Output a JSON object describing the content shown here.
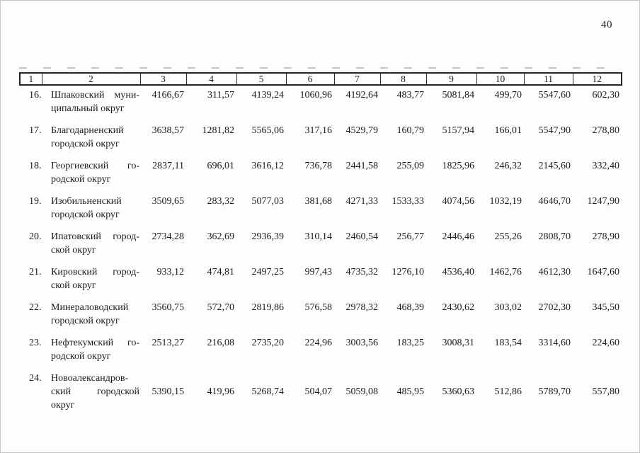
{
  "page": {
    "number": "40",
    "ink_color": "#1b1b1b",
    "paper_color": "#fefefe"
  },
  "table": {
    "header": [
      "1",
      "2",
      "3",
      "4",
      "5",
      "6",
      "7",
      "8",
      "9",
      "10",
      "11",
      "12"
    ],
    "rows": [
      {
        "num": "16.",
        "name_lines": [
          "Шпаковский муни-",
          "ципальный округ"
        ],
        "values": [
          "4166,67",
          "311,57",
          "4139,24",
          "1060,96",
          "4192,64",
          "483,77",
          "5081,84",
          "499,70",
          "5547,60",
          "602,30"
        ],
        "value_line_offset": 0
      },
      {
        "num": "17.",
        "name_lines": [
          "Благодарненский",
          "городской округ"
        ],
        "values": [
          "3638,57",
          "1281,82",
          "5565,06",
          "317,16",
          "4529,79",
          "160,79",
          "5157,94",
          "166,01",
          "5547,90",
          "278,80"
        ],
        "value_line_offset": 0
      },
      {
        "num": "18.",
        "name_lines": [
          "Георгиевский го-",
          "родской округ"
        ],
        "values": [
          "2837,11",
          "696,01",
          "3616,12",
          "736,78",
          "2441,58",
          "255,09",
          "1825,96",
          "246,32",
          "2145,60",
          "332,40"
        ],
        "value_line_offset": 0
      },
      {
        "num": "19.",
        "name_lines": [
          "Изобильненский",
          "городской округ"
        ],
        "values": [
          "3509,65",
          "283,32",
          "5077,03",
          "381,68",
          "4271,33",
          "1533,33",
          "4074,56",
          "1032,19",
          "4646,70",
          "1247,90"
        ],
        "value_line_offset": 0
      },
      {
        "num": "20.",
        "name_lines": [
          "Ипатовский город-",
          "ской округ"
        ],
        "values": [
          "2734,28",
          "362,69",
          "2936,39",
          "310,14",
          "2460,54",
          "256,77",
          "2446,46",
          "255,26",
          "2808,70",
          "278,90"
        ],
        "value_line_offset": 0
      },
      {
        "num": "21.",
        "name_lines": [
          "Кировский город-",
          "ской округ"
        ],
        "values": [
          "933,12",
          "474,81",
          "2497,25",
          "997,43",
          "4735,32",
          "1276,10",
          "4536,40",
          "1462,76",
          "4612,30",
          "1647,60"
        ],
        "value_line_offset": 0
      },
      {
        "num": "22.",
        "name_lines": [
          "Минераловодский",
          "городской округ"
        ],
        "values": [
          "3560,75",
          "572,70",
          "2819,86",
          "576,58",
          "2978,32",
          "468,39",
          "2430,62",
          "303,02",
          "2702,30",
          "345,50"
        ],
        "value_line_offset": 0
      },
      {
        "num": "23.",
        "name_lines": [
          "Нефтекумский го-",
          "родской округ"
        ],
        "values": [
          "2513,27",
          "216,08",
          "2735,20",
          "224,96",
          "3003,56",
          "183,25",
          "3008,31",
          "183,54",
          "3314,60",
          "224,60"
        ],
        "value_line_offset": 0
      },
      {
        "num": "24.",
        "name_lines": [
          "Новоалександров-",
          "ский городской",
          "округ"
        ],
        "values": [
          "5390,15",
          "419,96",
          "5268,74",
          "504,07",
          "5059,08",
          "485,95",
          "5360,63",
          "512,86",
          "5789,70",
          "557,80"
        ],
        "value_line_offset": 1
      }
    ]
  }
}
